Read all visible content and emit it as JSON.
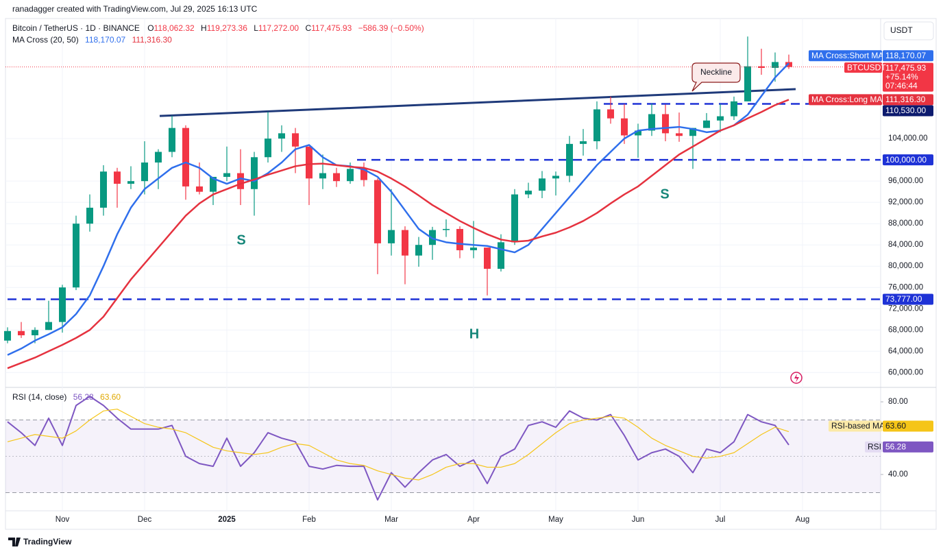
{
  "header": "ranadagger created with TradingView.com, Jul 29, 2025 16:13 UTC",
  "footer": "TradingView",
  "chart_data": [
    {
      "type": "candlestick",
      "title": "Bitcoin / TetherUS · 1D · BINANCE",
      "ohlc": [
        {
          "key": "O",
          "text": "118,062.32"
        },
        {
          "key": "H",
          "text": "119,273.36"
        },
        {
          "key": "L",
          "text": "117,272.00"
        },
        {
          "key": "C",
          "text": "117,475.93"
        }
      ],
      "change": "−586.39 (−0.50%)",
      "indicator": "MA Cross (20, 50)",
      "currency": "USDT",
      "symbol": "BTCUSDT",
      "last_label": "117,475.93",
      "change_pct": "+75.14%",
      "countdown": "07:46:44",
      "up_color": "#089981",
      "down_color": "#f23645",
      "categories": [
        null,
        null,
        null,
        null,
        "Nov",
        null,
        null,
        null,
        null,
        null,
        "Dec",
        null,
        null,
        null,
        null,
        null,
        "2025",
        null,
        null,
        null,
        null,
        null,
        "Feb",
        null,
        null,
        null,
        null,
        null,
        "Mar",
        null,
        null,
        null,
        null,
        null,
        "Apr",
        null,
        null,
        null,
        null,
        null,
        "May",
        null,
        null,
        null,
        null,
        null,
        "Jun",
        null,
        null,
        null,
        null,
        null,
        "Jul",
        null,
        null,
        null,
        null,
        null,
        "Aug"
      ],
      "open": [
        66000,
        67800,
        67000,
        68000,
        69500,
        76000,
        88000,
        91000,
        97800,
        95500,
        96000,
        99500,
        101500,
        106000,
        95000,
        94000,
        96800,
        97500,
        94500,
        100500,
        104000,
        105000,
        102500,
        96500,
        97500,
        96000,
        98300,
        96200,
        84300,
        86800,
        82000,
        84000,
        86800,
        87000,
        83000,
        83500,
        79500,
        84500,
        93500,
        94200,
        96500,
        97000,
        103000,
        103500,
        109500,
        107800,
        104600,
        105500,
        108600,
        105000,
        104500,
        106000,
        107400,
        108200,
        111000,
        117600,
        117300,
        118400,
        null
      ],
      "high": [
        68500,
        69500,
        68500,
        73500,
        76500,
        89500,
        93500,
        99000,
        98500,
        98800,
        103500,
        102000,
        108300,
        106500,
        99500,
        96500,
        102500,
        102000,
        101500,
        109000,
        106500,
        106000,
        102500,
        101000,
        98500,
        99500,
        99500,
        96500,
        94500,
        87500,
        85500,
        87400,
        88800,
        87500,
        88500,
        83500,
        86000,
        94500,
        95700,
        97900,
        97800,
        104500,
        105800,
        111000,
        111900,
        110500,
        106800,
        110600,
        110400,
        108900,
        106000,
        108800,
        110500,
        111900,
        123200,
        120900,
        120200,
        119800,
        null
      ],
      "low": [
        65500,
        66500,
        65500,
        68000,
        67500,
        75500,
        86500,
        89500,
        91000,
        94500,
        93500,
        94500,
        100500,
        92500,
        93500,
        91500,
        96000,
        91500,
        89500,
        99500,
        101500,
        97500,
        91500,
        94500,
        94900,
        95500,
        95000,
        78500,
        82000,
        76600,
        79900,
        81200,
        85500,
        81500,
        81500,
        74500,
        79000,
        84000,
        92800,
        92800,
        93300,
        95800,
        100800,
        102000,
        106800,
        103000,
        100400,
        104500,
        103500,
        103400,
        98300,
        106000,
        105200,
        107500,
        111000,
        116000,
        114700,
        117100,
        null
      ],
      "close": [
        67800,
        67000,
        68000,
        69500,
        76000,
        88000,
        91000,
        97800,
        95500,
        96000,
        99500,
        101500,
        106000,
        95000,
        94000,
        96800,
        97500,
        94500,
        100500,
        104000,
        105000,
        102500,
        96500,
        97500,
        96000,
        98300,
        96200,
        84300,
        86800,
        82000,
        84000,
        86800,
        87000,
        83000,
        83500,
        79500,
        84500,
        93500,
        94200,
        96500,
        97000,
        103000,
        103500,
        109500,
        107800,
        104600,
        105500,
        108600,
        105000,
        104500,
        106000,
        107400,
        108200,
        111000,
        117600,
        117300,
        118400,
        117475.93,
        null
      ],
      "series": [
        {
          "name": "MA Cross:Short MA",
          "color": "#2f6fec",
          "last_label": "118,170.07",
          "values": [
            63300,
            64500,
            66000,
            67200,
            68500,
            71000,
            74500,
            80000,
            86000,
            91000,
            94500,
            96500,
            98500,
            99500,
            98500,
            96500,
            95500,
            96500,
            96000,
            97500,
            99500,
            102000,
            102800,
            100500,
            99000,
            98800,
            98200,
            96800,
            94000,
            90500,
            87000,
            85200,
            84500,
            84200,
            84000,
            83800,
            83200,
            82600,
            84000,
            87000,
            90000,
            93000,
            96000,
            99000,
            101500,
            104000,
            105500,
            105800,
            106000,
            106200,
            105800,
            105200,
            105500,
            106500,
            108500,
            112000,
            115500,
            118170.07,
            null
          ]
        },
        {
          "name": "MA Cross:Long MA",
          "color": "#e5323f",
          "last_label": "111,316.30",
          "values": [
            60800,
            61800,
            62800,
            64000,
            65200,
            66500,
            68000,
            70500,
            74000,
            77500,
            80500,
            83500,
            86500,
            89500,
            91800,
            93500,
            94500,
            95500,
            96300,
            97200,
            98000,
            98800,
            99200,
            99300,
            99000,
            98700,
            98500,
            97800,
            96500,
            95000,
            93300,
            91500,
            90000,
            88500,
            87200,
            86000,
            85000,
            84600,
            84800,
            85600,
            86300,
            87300,
            88500,
            90000,
            91800,
            93500,
            95000,
            97000,
            99000,
            101000,
            102500,
            104000,
            105500,
            106500,
            107800,
            109000,
            110300,
            111316.3,
            null
          ]
        }
      ],
      "levels": [
        {
          "value": 110530,
          "label": "110,530.00",
          "start": 43.5
        },
        {
          "value": 100000,
          "label": "100,000.00",
          "start": 25.5
        },
        {
          "value": 73777,
          "label": "73,777.00",
          "start": 0
        }
      ],
      "neckline": {
        "label": "Neckline",
        "start_index": 11.1,
        "start_value": 108250,
        "end_index": 57.5,
        "end_value": 113300
      },
      "annotations": [
        "S",
        "H",
        "S"
      ],
      "ylim": [
        57200,
        126200
      ],
      "yticks": [
        {
          "value": 60000,
          "label": "60,000.00"
        },
        {
          "value": 64000,
          "label": "64,000.00"
        },
        {
          "value": 68000,
          "label": "68,000.00"
        },
        {
          "value": 72000,
          "label": "72,000.00"
        },
        {
          "value": 76000,
          "label": "76,000.00"
        },
        {
          "value": 80000,
          "label": "80,000.00"
        },
        {
          "value": 84000,
          "label": "84,000.00"
        },
        {
          "value": 88000,
          "label": "88,000.00"
        },
        {
          "value": 92000,
          "label": "92,000.00"
        },
        {
          "value": 96000,
          "label": "96,000.00"
        },
        {
          "value": 104000,
          "label": "104,000.00"
        }
      ],
      "grid": true
    },
    {
      "type": "line",
      "title": "RSI (14, close)",
      "band": [
        30,
        70
      ],
      "midline": 50,
      "band_color": "#7e57c2",
      "series": [
        {
          "name": "RSI",
          "color": "#7e57c2",
          "last_label": "56.28",
          "values": [
            69,
            63,
            56,
            71,
            56,
            78,
            83,
            78,
            71,
            65,
            65,
            65,
            67,
            50,
            46,
            44.5,
            60,
            44.5,
            52,
            63,
            60,
            58,
            44.5,
            43,
            45,
            44.5,
            44.5,
            26,
            41,
            33,
            41,
            48,
            51,
            44.5,
            48,
            35,
            50,
            54,
            67,
            69,
            66,
            75,
            71,
            70,
            73,
            61.5,
            48,
            52,
            54,
            50,
            41,
            54,
            52,
            58,
            73,
            69,
            67,
            56.28,
            null
          ]
        },
        {
          "name": "RSI-based MA",
          "color": "#f5c518",
          "last_label": "63.60",
          "values": [
            58,
            60,
            62,
            61,
            60,
            64,
            70,
            75,
            76,
            72,
            68,
            66,
            65,
            63,
            59,
            55,
            53,
            52,
            51,
            52,
            55,
            57,
            56,
            52,
            48,
            46,
            45,
            42,
            40,
            38,
            37,
            40,
            44,
            46,
            46,
            44,
            44,
            46,
            51,
            57,
            63,
            68,
            70,
            71,
            72,
            71,
            66,
            60,
            56,
            53,
            50,
            49,
            50,
            52,
            57,
            62,
            66,
            63.6,
            null
          ]
        }
      ],
      "ylim": [
        20,
        87.2
      ],
      "yticks": [
        {
          "value": 40,
          "label": "40.00"
        },
        {
          "value": 80,
          "label": "80.00"
        }
      ],
      "grid": false
    }
  ]
}
